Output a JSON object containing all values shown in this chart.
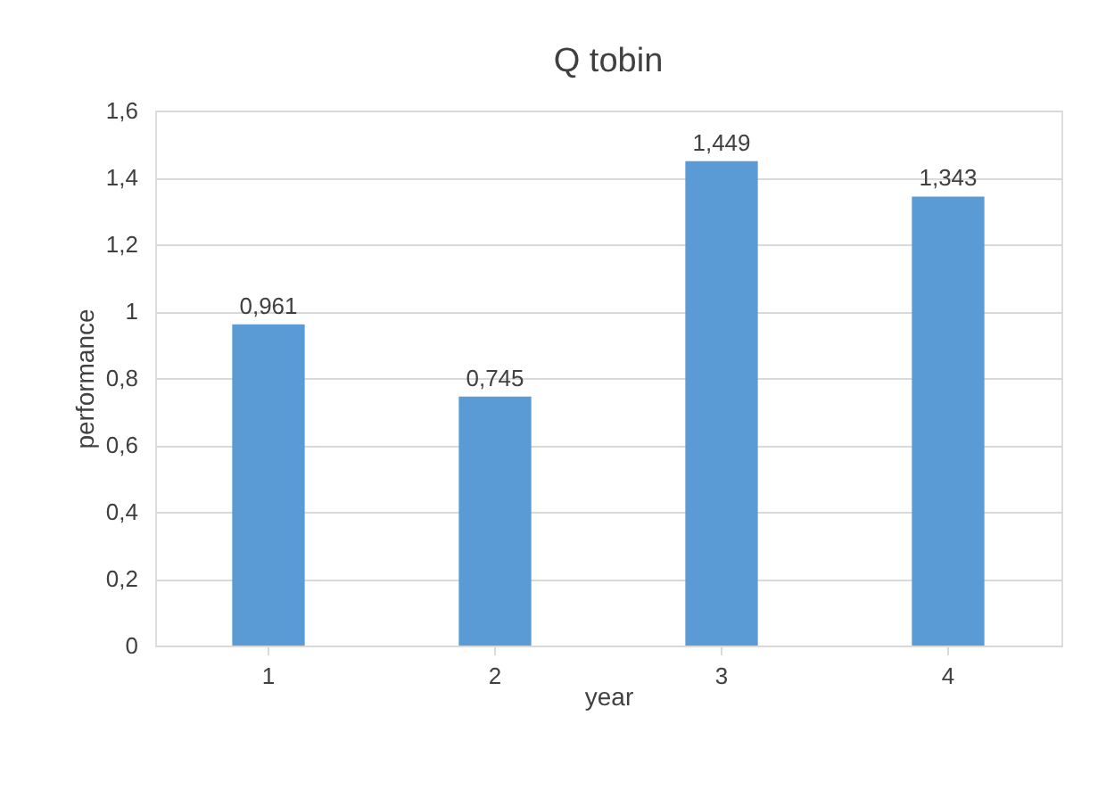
{
  "chart_data": {
    "type": "bar",
    "title": "Q tobin",
    "xlabel": "year",
    "ylabel": "performance",
    "categories": [
      "1",
      "2",
      "3",
      "4"
    ],
    "values": [
      0.961,
      0.745,
      1.449,
      1.343
    ],
    "value_labels": [
      "0,961",
      "0,745",
      "1,449",
      "1,343"
    ],
    "color": "#5b9bd5",
    "ylim": [
      0,
      1.6
    ],
    "yticks": [
      0,
      {
        "value": 0.2,
        "label": "0,2"
      },
      {
        "value": 0.4,
        "label": "0,4"
      },
      {
        "value": 0.6,
        "label": "0,6"
      },
      {
        "value": 0.8,
        "label": "0,8"
      },
      1,
      {
        "value": 1.2,
        "label": "1,2"
      },
      {
        "value": 1.4,
        "label": "1,4"
      },
      {
        "value": 1.6,
        "label": "1,6"
      }
    ],
    "grid": "y"
  }
}
